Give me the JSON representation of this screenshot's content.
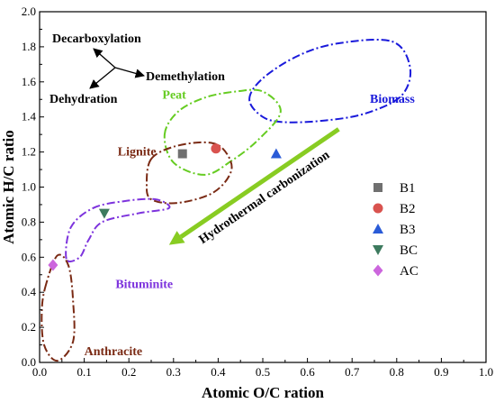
{
  "chart_data": {
    "type": "scatter",
    "xlabel": "Atomic O/C ration",
    "ylabel": "Atomic H/C ratio",
    "xlim": [
      0.0,
      1.0
    ],
    "ylim": [
      0.0,
      2.0
    ],
    "x_ticks": [
      "0.0",
      "0.1",
      "0.2",
      "0.3",
      "0.4",
      "0.5",
      "0.6",
      "0.7",
      "0.8",
      "0.9",
      "1.0"
    ],
    "y_ticks": [
      "0.0",
      "0.2",
      "0.4",
      "0.6",
      "0.8",
      "1.0",
      "1.2",
      "1.4",
      "1.6",
      "1.8",
      "2.0"
    ],
    "legend_position": "right",
    "series": [
      {
        "name": "B1",
        "marker": "square",
        "color": "#707070",
        "points": [
          {
            "x": 0.32,
            "y": 1.19
          }
        ]
      },
      {
        "name": "B2",
        "marker": "circle",
        "color": "#d9534f",
        "points": [
          {
            "x": 0.395,
            "y": 1.22
          }
        ]
      },
      {
        "name": "B3",
        "marker": "triangle-up",
        "color": "#2a5bd7",
        "points": [
          {
            "x": 0.53,
            "y": 1.19
          }
        ]
      },
      {
        "name": "BC",
        "marker": "triangle-down",
        "color": "#3d7a5e",
        "points": [
          {
            "x": 0.145,
            "y": 0.85
          }
        ]
      },
      {
        "name": "AC",
        "marker": "diamond",
        "color": "#cc66dd",
        "points": [
          {
            "x": 0.03,
            "y": 0.555
          }
        ]
      }
    ],
    "regions": [
      {
        "name": "Biomass",
        "color": "#1a1adb",
        "label_at": [
          0.74,
          1.48
        ],
        "outline": [
          [
            0.47,
            1.5
          ],
          [
            0.5,
            1.62
          ],
          [
            0.58,
            1.75
          ],
          [
            0.67,
            1.82
          ],
          [
            0.79,
            1.83
          ],
          [
            0.83,
            1.68
          ],
          [
            0.81,
            1.52
          ],
          [
            0.73,
            1.42
          ],
          [
            0.64,
            1.38
          ],
          [
            0.55,
            1.37
          ],
          [
            0.5,
            1.4
          ],
          [
            0.47,
            1.5
          ]
        ]
      },
      {
        "name": "Peat",
        "color": "#66cc22",
        "label_at": [
          0.275,
          1.505
        ],
        "outline": [
          [
            0.28,
            1.3
          ],
          [
            0.31,
            1.43
          ],
          [
            0.37,
            1.51
          ],
          [
            0.44,
            1.545
          ],
          [
            0.5,
            1.545
          ],
          [
            0.54,
            1.43
          ],
          [
            0.49,
            1.27
          ],
          [
            0.43,
            1.15
          ],
          [
            0.37,
            1.07
          ],
          [
            0.3,
            1.14
          ],
          [
            0.28,
            1.3
          ]
        ]
      },
      {
        "name": "Lignite",
        "color": "#7a2a14",
        "label_at": [
          0.175,
          1.18
        ],
        "outline": [
          [
            0.25,
            1.16
          ],
          [
            0.3,
            1.23
          ],
          [
            0.37,
            1.255
          ],
          [
            0.41,
            1.22
          ],
          [
            0.43,
            1.1
          ],
          [
            0.39,
            0.97
          ],
          [
            0.31,
            0.91
          ],
          [
            0.25,
            0.93
          ],
          [
            0.24,
            1.02
          ],
          [
            0.25,
            1.16
          ]
        ]
      },
      {
        "name": "Bituminite",
        "color": "#7d33dd",
        "label_at": [
          0.17,
          0.425
        ],
        "outline": [
          [
            0.06,
            0.59
          ],
          [
            0.07,
            0.77
          ],
          [
            0.12,
            0.88
          ],
          [
            0.19,
            0.92
          ],
          [
            0.26,
            0.93
          ],
          [
            0.29,
            0.88
          ],
          [
            0.22,
            0.85
          ],
          [
            0.14,
            0.8
          ],
          [
            0.11,
            0.7
          ],
          [
            0.09,
            0.6
          ],
          [
            0.06,
            0.59
          ]
        ]
      },
      {
        "name": "Anthracite",
        "color": "#7a2a14",
        "label_at": [
          0.1,
          0.04
        ],
        "outline": [
          [
            0.015,
            0.45
          ],
          [
            0.005,
            0.3
          ],
          [
            0.01,
            0.1
          ],
          [
            0.04,
            0.01
          ],
          [
            0.075,
            0.12
          ],
          [
            0.075,
            0.35
          ],
          [
            0.065,
            0.55
          ],
          [
            0.04,
            0.61
          ],
          [
            0.015,
            0.45
          ]
        ]
      }
    ],
    "annotations": {
      "arrow_label": "Hydrothermal carbonization",
      "arrow_color": "#88cc22",
      "arrow_from": [
        0.67,
        1.33
      ],
      "arrow_to": [
        0.29,
        0.67
      ],
      "mechanisms": [
        "Decarboxylation",
        "Demethylation",
        "Dehydration"
      ]
    }
  }
}
